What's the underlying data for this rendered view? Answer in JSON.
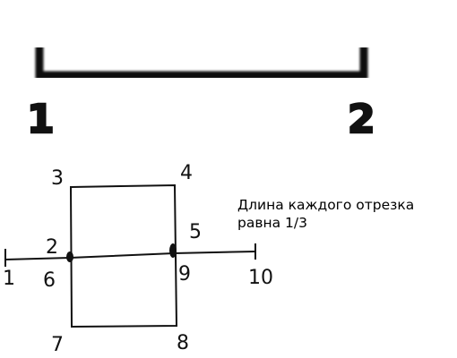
{
  "top_segment": {
    "left_label": "1",
    "right_label": "2"
  },
  "square_figure": {
    "points": {
      "p3": "3",
      "p4": "4",
      "p2": "2",
      "p5": "5",
      "p1": "1",
      "p6": "6",
      "p9": "9",
      "p10": "10",
      "p7": "7",
      "p8": "8"
    }
  },
  "note": {
    "line1": "Длина каждого отрезка",
    "line2": "равна 1/3"
  },
  "colors": {
    "ink": "#111111",
    "background": "#ffffff"
  }
}
